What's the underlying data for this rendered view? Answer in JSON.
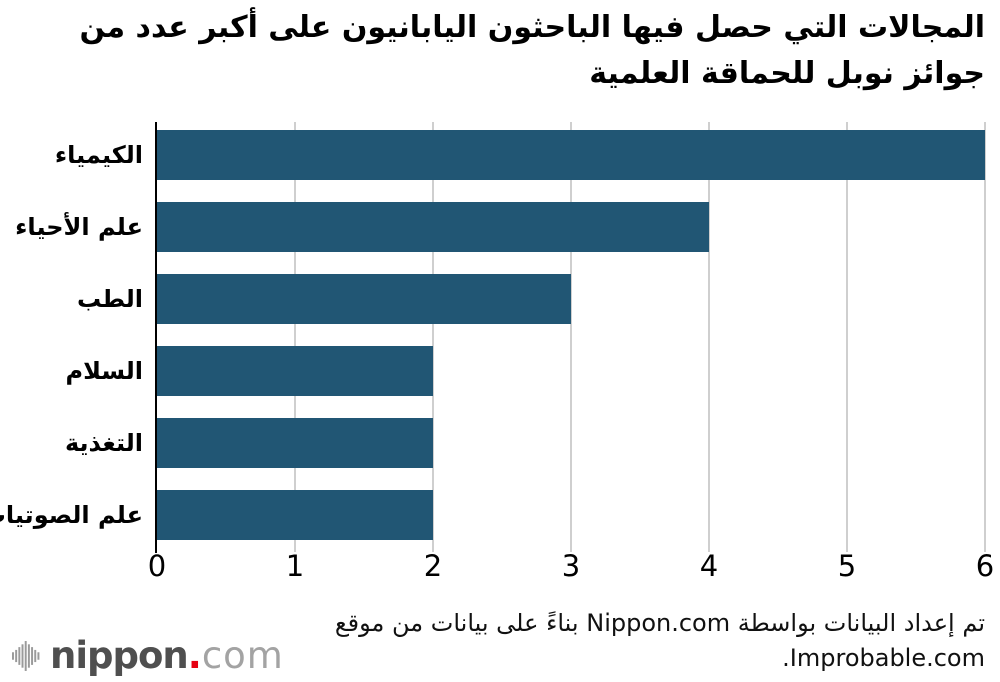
{
  "title_lines": [
    "المجالات التي حصل فيها الباحثون اليابانيون على أكبر عدد من",
    "جوائز نوبل للحماقة العلمية"
  ],
  "chart_data": {
    "type": "bar",
    "orientation": "horizontal",
    "title": "المجالات التي حصل فيها الباحثون اليابانيون على أكبر عدد من جوائز نوبل للحماقة العلمية",
    "categories": [
      "الكيمياء",
      "علم الأحياء",
      "الطب",
      "السلام",
      "التغذية",
      "علم الصوتيات"
    ],
    "values": [
      6,
      4,
      3,
      2,
      2,
      2
    ],
    "xticks": [
      0,
      1,
      2,
      3,
      4,
      5,
      6
    ],
    "xlim": [
      0,
      6
    ],
    "xlabel": "",
    "ylabel": "",
    "grid": true,
    "legend": false,
    "bar_color": "#215674"
  },
  "source_note": {
    "line1": "تم إعداد البيانات بواسطة Nippon.com بناءً على بيانات من موقع",
    "line2": "Improbable.com."
  },
  "logo": {
    "name": "nippon",
    "dot": ".",
    "tld": "com"
  },
  "colors": {
    "bar": "#215674",
    "gridline": "#cfcfcf",
    "axis": "#000000",
    "logo_red": "#e60012",
    "logo_gray_bold": "#4f4f4f",
    "logo_gray_light": "#a3a3a3"
  }
}
